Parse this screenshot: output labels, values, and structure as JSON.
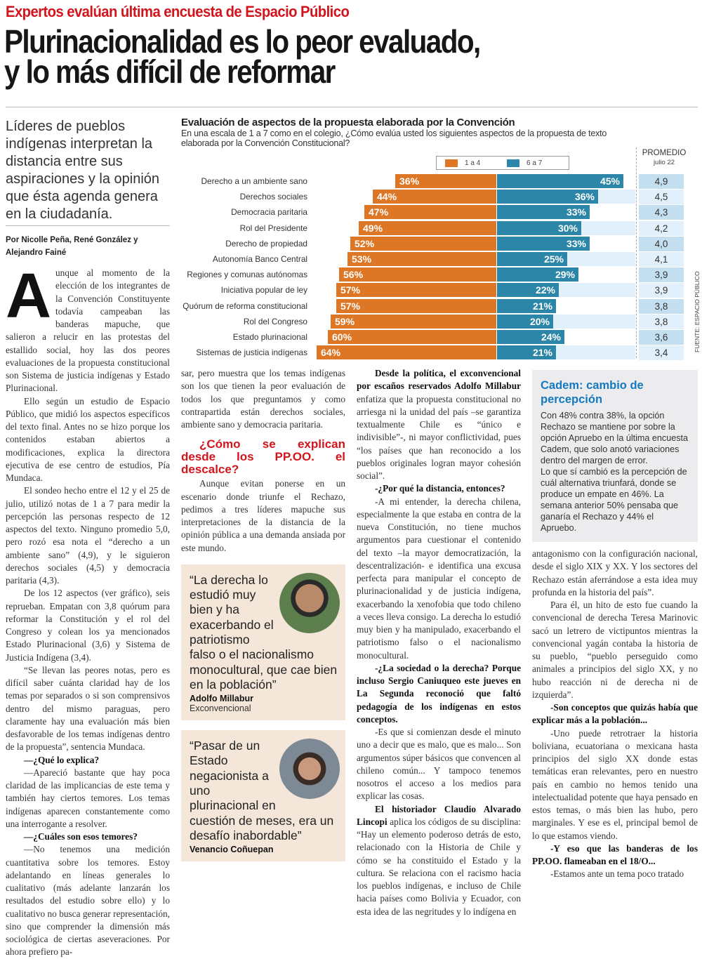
{
  "kicker": "Expertos evalúan última encuesta de Espacio Público",
  "headline": [
    "Plurinacionalidad es lo peor evaluado,",
    "y lo más difícil de reformar"
  ],
  "lede": "Líderes de pueblos indígenas interpretan la distancia entre sus aspiraciones y la opinión que ésta agenda genera en la ciudadanía.",
  "byline": "Por Nicolle Peña, René González y Alejandro Fainé",
  "colors": {
    "red": "#d2151d",
    "orange": "#dd7725",
    "teal": "#2b86a8",
    "light_blue": "#e1f0fa",
    "cadem_blue": "#1479bf",
    "quote_bg": "#f4e6d8"
  },
  "chart_data": {
    "type": "bar",
    "title": "Evaluación de aspectos de la propuesta elaborada por la Convención",
    "subtitle": "En una escala de 1 a 7 como en el colegio, ¿Cómo evalúa usted los siguientes aspectos de la propuesta de texto elaborada por la Convención Constitucional?",
    "legend": [
      "1 a 4",
      "6 a 7"
    ],
    "promedio_header": "PROMEDIO",
    "promedio_sub": "julio 22",
    "source": "FUENTE: ESPACIO PÚBLICO",
    "categories": [
      "Derecho a un ambiente sano",
      "Derechos sociales",
      "Democracia paritaria",
      "Rol del Presidente",
      "Derecho de propiedad",
      "Autonomía Banco Central",
      "Regiones y comunas autónomas",
      "Iniciativa popular de ley",
      "Quórum de reforma constitucional",
      "Rol del Congreso",
      "Estado plurinacional",
      "Sistemas de justicia indígenas"
    ],
    "series": [
      {
        "name": "1 a 4",
        "values": [
          36,
          44,
          47,
          49,
          52,
          53,
          56,
          57,
          57,
          59,
          60,
          64
        ],
        "labels": [
          "36%",
          "44%",
          "47%",
          "49%",
          "52%",
          "53%",
          "56%",
          "57%",
          "57%",
          "59%",
          "60%",
          "64%"
        ]
      },
      {
        "name": "6 a 7",
        "values": [
          45,
          36,
          33,
          30,
          33,
          25,
          29,
          22,
          21,
          20,
          24,
          21
        ],
        "labels": [
          "45%",
          "36%",
          "33%",
          "30%",
          "33%",
          "25%",
          "29%",
          "22%",
          "21%",
          "20%",
          "24%",
          "21%"
        ]
      }
    ],
    "promedio": [
      "4,9",
      "4,5",
      "4,3",
      "4,2",
      "4,0",
      "4,1",
      "3,9",
      "3,9",
      "3,8",
      "3,8",
      "3,6",
      "3,4"
    ]
  },
  "col1": [
    {
      "t": "unque al momento de la elección de los integrantes de la Convención Constituyente todavía campeaban las banderas mapuche, que salieron a relucir en las protestas del estallido social, hoy las dos peores evaluaciones de la propuesta constitucional son Sistema de justicia indígenas y Estado Plurinacional.",
      "cap": "A"
    },
    {
      "t": "Ello según un estudio de Espacio Público, que midió los aspectos específicos del texto final. Antes no se hizo porque los contenidos estaban abiertos a modificaciones, explica la directora ejecutiva de ese centro de estudios, Pía Mundaca."
    },
    {
      "t": "El sondeo hecho entre el 12 y el 25 de julio, utilizó notas de 1 a 7 para medir la percepción las personas respecto de 12 aspectos del texto. Ninguno promedio 5,0, pero rozó esa nota el “derecho a un ambiente sano” (4,9), y le siguieron derechos sociales (4,5) y democracia paritaria (4,3)."
    },
    {
      "t": "De los 12 aspectos (ver gráfico), seis reprueban. Empatan con 3,8 quórum para reformar la Constitución y el rol del Congreso y colean los ya mencionados Estado Plurinacional (3,6) y Sistema de Justicia Indígena (3,4)."
    },
    {
      "t": "“Se llevan las peores notas, pero es difícil saber cuánta claridad hay de los temas por separados o si son comprensivos dentro del mismo paraguas, pero claramente hay una evaluación más bien desfavorable de los temas indígenas dentro de la propuesta”, sentencia Mundaca."
    },
    {
      "b": "—¿Qué lo explica?"
    },
    {
      "t": "—Apareció bastante que hay poca claridad de las implicancias de este tema y también hay ciertos temores. Los temas indígenas aparecen constantemente como una interrogante a resolver."
    },
    {
      "b": "—¿Cuáles son esos temores?"
    },
    {
      "t": "—No tenemos una medición cuantitativa sobre los temores. Estoy adelantando en líneas generales lo cualitativo (más adelante lanzarán los resultados del estudio sobre ello) y lo cualitativo no busca generar representación, sino que comprender la dimensión más sociológica de ciertas aseveraciones. Por ahora prefiero pa-"
    }
  ],
  "col2": [
    {
      "t": "sar, pero muestra que los temas indígenas son los que tienen la peor evaluación de todos los que preguntamos y como contrapartida están derechos sociales, ambiente sano y democracia paritaria.",
      "noind": true
    },
    {
      "h": "¿Cómo se explican desde los PP.OO. el descalce?"
    },
    {
      "t": "Aunque evitan ponerse en un escenario donde triunfe el Rechazo, pedimos a tres líderes mapuche sus interpretaciones de la distancia de la opinión pública a una demanda ansiada por este mundo."
    }
  ],
  "quotes": [
    {
      "text": "“La derecha lo estudió muy bien y ha exacerbando el patriotismo falso o el nacionalismo monocultural, que cae bien en la población”",
      "name": "Adolfo Millabur",
      "role": "Exconvencional"
    },
    {
      "text": "“Pasar de un Estado negacionista a uno plurinacional en cuestión de meses, era un desafío inabordable”",
      "name": "Venancio Coñuepan"
    }
  ],
  "col3": [
    {
      "b": "Desde la política, el exconvencional por escaños reservados Adolfo Millabur",
      "t": " enfatiza que la propuesta constitucional no arriesga ni la unidad del país –se garantiza textualmente Chile es “único e indivisible”-, ni mayor conflictividad, pues “los países que han reconocido a los pueblos originales logran mayor cohesión social”."
    },
    {
      "b": "-¿Por qué la distancia, entonces?"
    },
    {
      "t": "-A mi entender, la derecha chilena, especialmente la que estaba en contra de la nueva Constitución, no tiene muchos argumentos para cuestionar el contenido del texto –la mayor democratización, la descentralización- e identifica una excusa perfecta para manipular el concepto de plurinacionalidad y de justicia indígena, exacerbando la xenofobia que todo chileno a veces lleva consigo. La derecha lo estudió muy bien y ha manipulado, exacerbando el patriotismo falso o el nacionalismo monocultural."
    },
    {
      "b": "-¿La sociedad o la derecha? Porque incluso Sergio Caniuqueo este jueves en La Segunda reconoció que faltó pedagogía de los indígenas en estos conceptos."
    },
    {
      "t": "-Es que si comienzan desde el minuto uno a decir que es malo, que es malo... Son argumentos súper básicos que convencen al chileno común... Y tampoco tenemos nosotros el acceso a los medios para explicar las cosas."
    },
    {
      "b": "El historiador Claudio Alvarado Lincopi",
      "t": " aplica los códigos de su disciplina: “Hay un elemento poderoso detrás de esto, relacionado con la Historia de Chile y cómo se ha constituido el Estado y la cultura. Se relaciona con el racismo hacia los pueblos indígenas, e incluso de Chile hacia países como Bolivia y Ecuador, con esta idea de las negritudes y lo indígena en"
    }
  ],
  "cadem": {
    "title": "Cadem: cambio de percepción",
    "p1": "Con 48% contra 38%, la opción Rechazo se mantiene por sobre la opción Apruebo en la última encuesta Cadem, que solo anotó variaciones dentro del margen de error.",
    "p2": "Lo que sí cambió es la percepción de cuál alternativa triunfará, donde se produce un empate en 46%. La semana anterior 50% pensaba que ganaría el Rechazo y 44% el Apruebo."
  },
  "col4": [
    {
      "t": "antagonismo con la configuración nacional, desde el siglo XIX y XX. Y los sectores del Rechazo están aferrándose a esta idea muy profunda en la historia del país”.",
      "noind": true
    },
    {
      "t": "Para él, un hito de esto fue cuando la convencional de derecha Teresa Marinovic sacó un letrero de victipuntos mientras la convencional yagán contaba la historia de su pueblo, “pueblo perseguido como animales a principios del siglo XX, y no hubo reacción ni de derecha ni de izquierda”."
    },
    {
      "b": "-Son conceptos que quizás había que explicar más a la población..."
    },
    {
      "t": "-Uno puede retrotraer la historia boliviana, ecuatoriana o mexicana hasta principios del siglo XX donde estas temáticas eran relevantes, pero en nuestro país en cambio no hemos tenido una intelectualidad potente que haya pensado en estos temas, o más bien las hubo, pero marginales. Y ese es el, principal bemol de lo que estamos viendo."
    },
    {
      "b": "-Y eso que las banderas de los PP.OO. flameaban en el 18/O..."
    },
    {
      "t": "-Estamos ante un tema poco tratado"
    }
  ]
}
